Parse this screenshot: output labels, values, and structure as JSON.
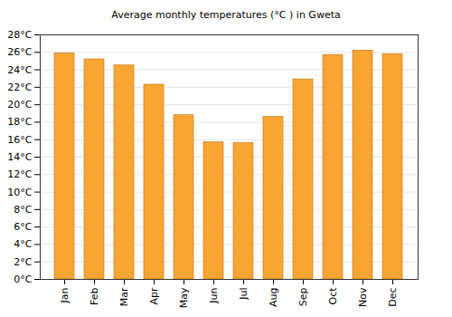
{
  "chart_data": {
    "type": "bar",
    "title": "Average monthly temperatures (°C ) in Gweta",
    "categories": [
      "Jan",
      "Feb",
      "Mar",
      "Apr",
      "May",
      "Jun",
      "Jul",
      "Aug",
      "Sep",
      "Oct",
      "Nov",
      "Dec"
    ],
    "values": [
      25.9,
      25.2,
      24.5,
      22.3,
      18.8,
      15.7,
      15.6,
      18.6,
      22.9,
      25.7,
      26.2,
      25.8
    ],
    "color": "#f9a533",
    "ylim": [
      0,
      28
    ],
    "yticks": [
      {
        "value": 0,
        "label": "0°C"
      },
      {
        "value": 2,
        "label": "2°C"
      },
      {
        "value": 4,
        "label": "4°C"
      },
      {
        "value": 6,
        "label": "6°C"
      },
      {
        "value": 8,
        "label": "8°C"
      },
      {
        "value": 10,
        "label": "10°C"
      },
      {
        "value": 12,
        "label": "12°C"
      },
      {
        "value": 14,
        "label": "14°C"
      },
      {
        "value": 16,
        "label": "16°C"
      },
      {
        "value": 18,
        "label": "18°C"
      },
      {
        "value": 20,
        "label": "20°C"
      },
      {
        "value": 22,
        "label": "22°C"
      },
      {
        "value": 24,
        "label": "24°C"
      },
      {
        "value": 26,
        "label": "26°C"
      },
      {
        "value": 28,
        "label": "28°C"
      }
    ],
    "grid": true
  }
}
